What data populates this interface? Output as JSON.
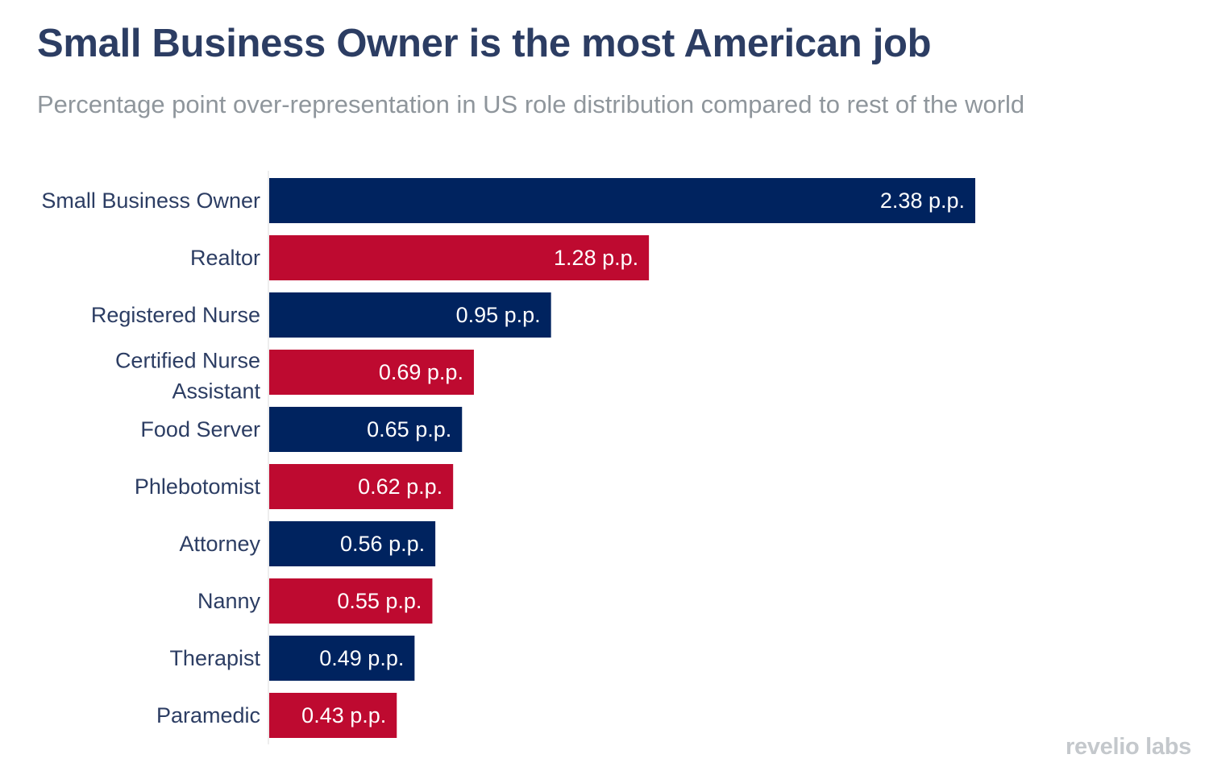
{
  "chart_data": {
    "type": "bar",
    "orientation": "horizontal",
    "title": "Small Business Owner is the most American job",
    "subtitle": "Percentage point over-representation in US role distribution compared to rest of the world",
    "categories": [
      "Small Business Owner",
      "Realtor",
      "Registered Nurse",
      "Certified Nurse Assistant",
      "Food Server",
      "Phlebotomist",
      "Attorney",
      "Nanny",
      "Therapist",
      "Paramedic"
    ],
    "values": [
      2.38,
      1.28,
      0.95,
      0.69,
      0.65,
      0.62,
      0.56,
      0.55,
      0.49,
      0.43
    ],
    "value_labels": [
      "2.38 p.p.",
      "1.28 p.p.",
      "0.95 p.p.",
      "0.69 p.p.",
      "0.65 p.p.",
      "0.62 p.p.",
      "0.56 p.p.",
      "0.55 p.p.",
      "0.49 p.p.",
      "0.43 p.p."
    ],
    "bar_colors": [
      "#00235f",
      "#be0a30",
      "#00235f",
      "#be0a30",
      "#00235f",
      "#be0a30",
      "#00235f",
      "#be0a30",
      "#00235f",
      "#be0a30"
    ],
    "xlabel": "",
    "ylabel": "",
    "xlim": [
      0,
      2.38
    ],
    "grid": false,
    "legend": "none"
  },
  "brand": {
    "logo_text": "revelio labs"
  },
  "colors": {
    "title": "#2c3d63",
    "subtitle": "#8f969c",
    "axis": "#dddddd"
  }
}
